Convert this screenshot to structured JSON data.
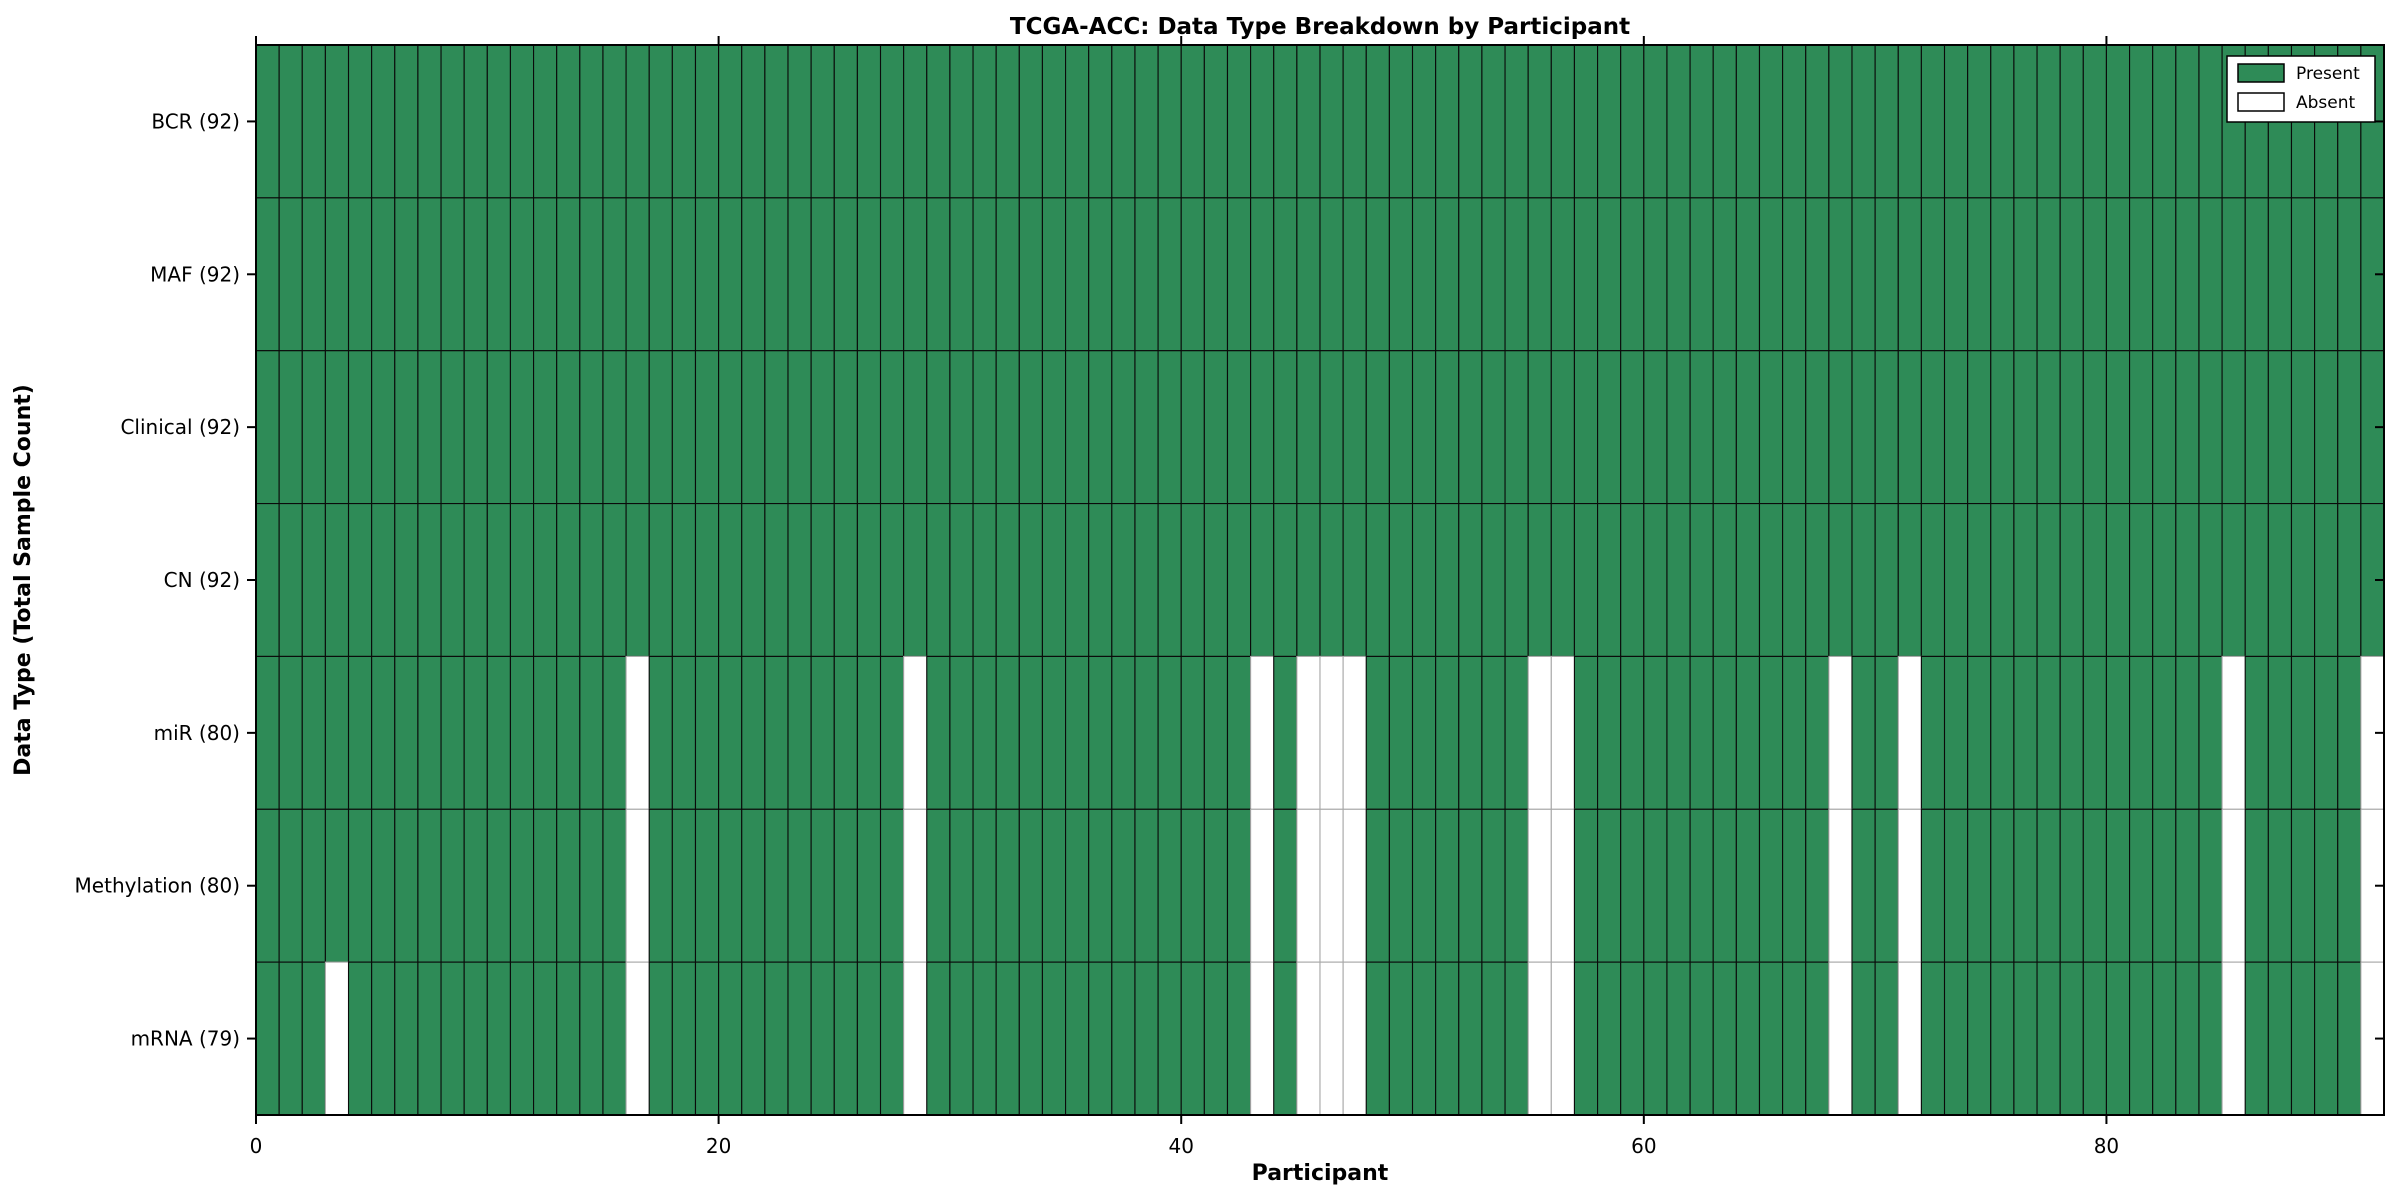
{
  "chart_data": {
    "type": "heatmap",
    "title": "TCGA-ACC: Data Type Breakdown by Participant",
    "xlabel": "Participant",
    "ylabel": "Data Type (Total Sample Count)",
    "n_participants": 92,
    "x_range": [
      0,
      92
    ],
    "x_ticks": [
      "0",
      "20",
      "40",
      "60",
      "80"
    ],
    "x_tick_values": [
      0,
      20,
      40,
      60,
      80
    ],
    "rows": [
      {
        "label": "BCR (92)",
        "data_type": "BCR",
        "total": 92,
        "absent_participants": []
      },
      {
        "label": "MAF (92)",
        "data_type": "MAF",
        "total": 92,
        "absent_participants": []
      },
      {
        "label": "Clinical (92)",
        "data_type": "Clinical",
        "total": 92,
        "absent_participants": []
      },
      {
        "label": "CN (92)",
        "data_type": "CN",
        "total": 92,
        "absent_participants": []
      },
      {
        "label": "miR (80)",
        "data_type": "miR",
        "total": 80,
        "absent_participants": [
          16,
          28,
          43,
          45,
          46,
          47,
          55,
          56,
          68,
          71,
          85,
          91
        ]
      },
      {
        "label": "Methylation (80)",
        "data_type": "Methylation",
        "total": 80,
        "absent_participants": [
          16,
          28,
          43,
          45,
          46,
          47,
          55,
          56,
          68,
          71,
          85,
          91
        ]
      },
      {
        "label": "mRNA (79)",
        "data_type": "mRNA",
        "total": 79,
        "absent_participants": [
          3,
          16,
          28,
          43,
          45,
          46,
          47,
          55,
          56,
          68,
          71,
          85,
          91
        ]
      }
    ],
    "legend": {
      "position": "upper-right",
      "entries": [
        {
          "label": "Present",
          "color": "#2e8b57"
        },
        {
          "label": "Absent",
          "color": "#ffffff"
        }
      ]
    },
    "colors": {
      "present": "#2e8b57",
      "absent": "#ffffff",
      "edge": "#0a0a0a",
      "absent_edge": "#a8a8a8",
      "spine": "#000000",
      "background": "#ffffff"
    },
    "grid": false
  }
}
